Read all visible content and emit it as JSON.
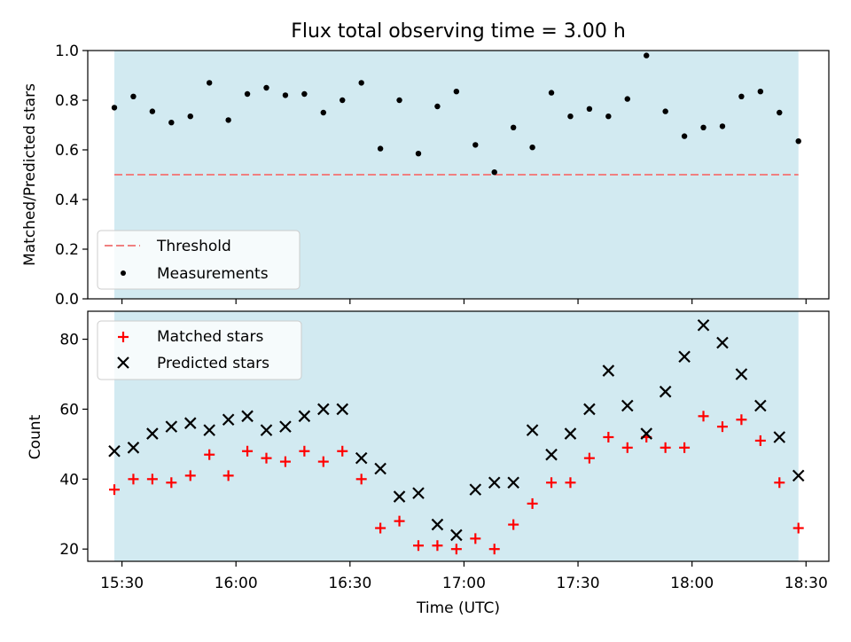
{
  "title": "Flux total observing time = 3.00 h",
  "xlabel": "Time (UTC)",
  "colors": {
    "band": "#add8e6",
    "threshold": "#f08080",
    "matched": "#ff0000",
    "predicted": "#000000",
    "measurement": "#000000"
  },
  "chart_data": [
    {
      "type": "scatter",
      "ylabel": "Matched/Predicted stars",
      "xlim": [
        "15:21",
        "18:36"
      ],
      "ylim": [
        0,
        1.0
      ],
      "x_ticks": [
        "15:30",
        "16:00",
        "16:30",
        "17:00",
        "17:30",
        "18:00",
        "18:30"
      ],
      "y_ticks": [
        "0.0",
        "0.2",
        "0.4",
        "0.6",
        "0.8",
        "1.0"
      ],
      "observing_window": [
        "15:28",
        "18:28"
      ],
      "threshold": 0.5,
      "legend": {
        "position": "lower-left",
        "entries": [
          "Threshold",
          "Measurements"
        ]
      },
      "series": [
        {
          "name": "Measurements",
          "marker": "dot",
          "x": [
            "15:28",
            "15:33",
            "15:38",
            "15:43",
            "15:48",
            "15:53",
            "15:58",
            "16:03",
            "16:08",
            "16:13",
            "16:18",
            "16:23",
            "16:28",
            "16:33",
            "16:38",
            "16:43",
            "16:48",
            "16:53",
            "16:58",
            "17:03",
            "17:08",
            "17:13",
            "17:18",
            "17:23",
            "17:28",
            "17:33",
            "17:38",
            "17:43",
            "17:48",
            "17:53",
            "17:58",
            "18:03",
            "18:08",
            "18:13",
            "18:18",
            "18:23",
            "18:28"
          ],
          "values": [
            0.77,
            0.815,
            0.755,
            0.71,
            0.735,
            0.87,
            0.72,
            0.825,
            0.85,
            0.82,
            0.825,
            0.75,
            0.8,
            0.87,
            0.605,
            0.8,
            0.585,
            0.775,
            0.835,
            0.62,
            0.51,
            0.69,
            0.61,
            0.83,
            0.735,
            0.765,
            0.735,
            0.805,
            0.98,
            0.755,
            0.655,
            0.69,
            0.695,
            0.815,
            0.835,
            0.75,
            0.635
          ]
        }
      ]
    },
    {
      "type": "scatter",
      "ylabel": "Count",
      "xlim": [
        "15:21",
        "18:36"
      ],
      "ylim": [
        16.5,
        88
      ],
      "x_ticks": [
        "15:30",
        "16:00",
        "16:30",
        "17:00",
        "17:30",
        "18:00",
        "18:30"
      ],
      "y_ticks": [
        "20",
        "40",
        "60",
        "80"
      ],
      "observing_window": [
        "15:28",
        "18:28"
      ],
      "legend": {
        "position": "upper-left",
        "entries": [
          "Matched stars",
          "Predicted stars"
        ]
      },
      "series": [
        {
          "name": "Matched stars",
          "marker": "plus",
          "x": [
            "15:28",
            "15:33",
            "15:38",
            "15:43",
            "15:48",
            "15:53",
            "15:58",
            "16:03",
            "16:08",
            "16:13",
            "16:18",
            "16:23",
            "16:28",
            "16:33",
            "16:38",
            "16:43",
            "16:48",
            "16:53",
            "16:58",
            "17:03",
            "17:08",
            "17:13",
            "17:18",
            "17:23",
            "17:28",
            "17:33",
            "17:38",
            "17:43",
            "17:48",
            "17:53",
            "17:58",
            "18:03",
            "18:08",
            "18:13",
            "18:18",
            "18:23",
            "18:28"
          ],
          "values": [
            37,
            40,
            40,
            39,
            41,
            47,
            41,
            48,
            46,
            45,
            48,
            45,
            48,
            40,
            26,
            28,
            21,
            21,
            20,
            23,
            20,
            27,
            33,
            39,
            39,
            46,
            52,
            49,
            52,
            49,
            49,
            58,
            55,
            57,
            51,
            39,
            26
          ]
        },
        {
          "name": "Predicted stars",
          "marker": "x",
          "x": [
            "15:28",
            "15:33",
            "15:38",
            "15:43",
            "15:48",
            "15:53",
            "15:58",
            "16:03",
            "16:08",
            "16:13",
            "16:18",
            "16:23",
            "16:28",
            "16:33",
            "16:38",
            "16:43",
            "16:48",
            "16:53",
            "16:58",
            "17:03",
            "17:08",
            "17:13",
            "17:18",
            "17:23",
            "17:28",
            "17:33",
            "17:38",
            "17:43",
            "17:48",
            "17:53",
            "17:58",
            "18:03",
            "18:08",
            "18:13",
            "18:18",
            "18:23",
            "18:28"
          ],
          "values": [
            48,
            49,
            53,
            55,
            56,
            54,
            57,
            58,
            54,
            55,
            58,
            60,
            60,
            46,
            43,
            35,
            36,
            27,
            24,
            37,
            39,
            39,
            54,
            47,
            53,
            60,
            71,
            61,
            53,
            65,
            75,
            84,
            79,
            70,
            61,
            52,
            41
          ]
        }
      ]
    }
  ]
}
